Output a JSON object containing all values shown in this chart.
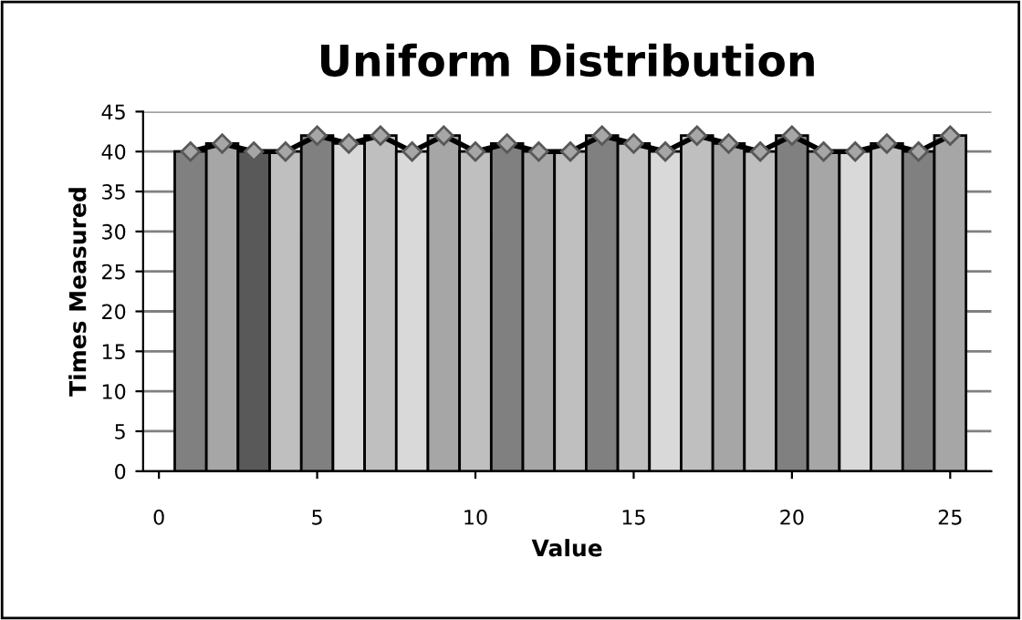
{
  "chart_data": {
    "type": "histogram",
    "title": "Uniform Distribution",
    "xlabel": "Value",
    "ylabel": "Times Measured",
    "series": [
      {
        "bins": [
          0.5,
          1.5,
          2.5,
          3.5,
          4.5,
          5.5,
          6.5,
          7.5,
          8.5,
          9.5,
          10.5,
          11.5,
          12.5,
          13.5,
          14.5,
          15.5,
          16.5,
          17.5,
          18.5,
          19.5,
          20.5,
          21.5,
          22.5,
          23.5,
          24.5,
          25.5
        ],
        "values": [
          40,
          41,
          40,
          40,
          42,
          41,
          42,
          40,
          42,
          40,
          41,
          40,
          40,
          42,
          41,
          40,
          42,
          41,
          40,
          42,
          40,
          40,
          41,
          40,
          42
        ],
        "colors": [
          "#808080",
          "#a6a6a6",
          "#595959",
          "#bfbfbf",
          "#808080",
          "#d9d9d9",
          "#bfbfbf",
          "#d9d9d9",
          "#a6a6a6",
          "#bfbfbf",
          "#808080",
          "#a6a6a6",
          "#bfbfbf",
          "#808080",
          "#bfbfbf",
          "#d9d9d9",
          "#bfbfbf",
          "#a6a6a6",
          "#bfbfbf",
          "#808080",
          "#a6a6a6",
          "#d9d9d9",
          "#bfbfbf",
          "#808080",
          "#a6a6a6"
        ]
      },
      {
        "type": "line",
        "x": [
          1,
          2,
          3,
          4,
          5,
          6,
          7,
          8,
          9,
          10,
          11,
          12,
          13,
          14,
          15,
          16,
          17,
          18,
          19,
          20,
          21,
          22,
          23,
          24,
          25
        ],
        "values": [
          40,
          41,
          40,
          40,
          42,
          41,
          42,
          40,
          42,
          40,
          41,
          40,
          40,
          42,
          41,
          40,
          42,
          41,
          40,
          42,
          40,
          40,
          41,
          40,
          42
        ],
        "color": "#000000",
        "marker": "diamond"
      }
    ],
    "xlim": [
      -0.5,
      26.3
    ],
    "xticks": [
      0,
      5,
      10,
      15,
      20,
      25
    ],
    "ylim": [
      0,
      45
    ],
    "yticks": [
      0,
      5,
      10,
      15,
      20,
      25,
      30,
      35,
      40,
      45
    ],
    "grid": "y",
    "legend": false
  }
}
